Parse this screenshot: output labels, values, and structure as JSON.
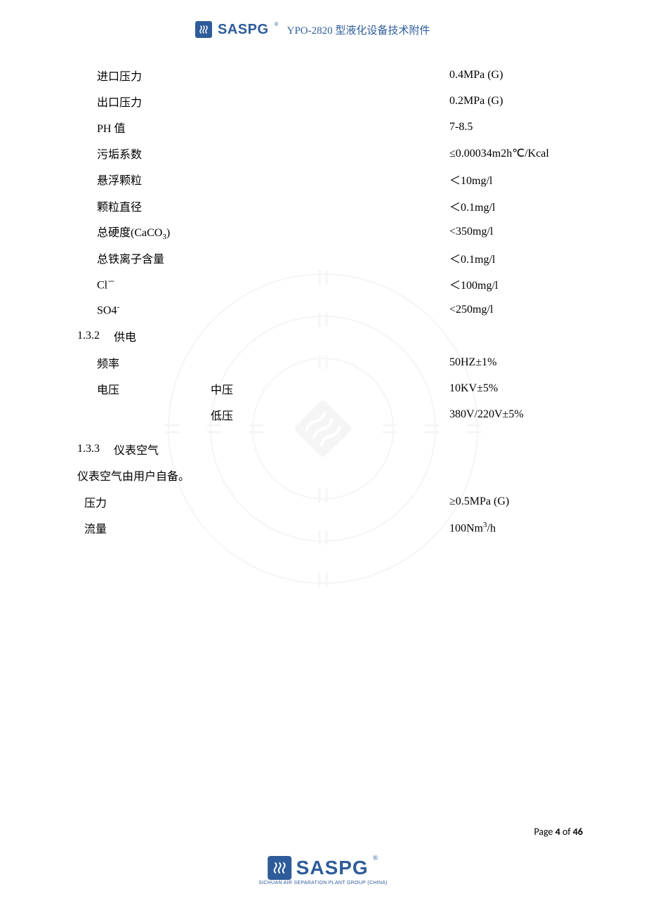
{
  "header": {
    "brand": "SASPG",
    "reg": "®",
    "title": "YPO-2820 型液化设备技术附件"
  },
  "rows": [
    {
      "label": "进口压力",
      "mid": "",
      "value": "0.4MPa (G)"
    },
    {
      "label": "出口压力",
      "mid": "",
      "value": "0.2MPa (G)"
    },
    {
      "label": "PH 值",
      "mid": "",
      "value": "7-8.5"
    },
    {
      "label": "污垢系数",
      "mid": "",
      "value": "≤0.00034m2h℃/Kcal"
    },
    {
      "label": "悬浮颗粒",
      "mid": "",
      "value": "＜10mg/l"
    },
    {
      "label": "颗粒直径",
      "mid": "",
      "value": "＜0.1mg/l"
    },
    {
      "label_html": "总硬度(CaCO<sub>3</sub>)",
      "mid": "",
      "value": "<350mg/l"
    },
    {
      "label": "总铁离子含量",
      "mid": "",
      "value": "＜0.1mg/l"
    },
    {
      "label_html": "Cl<sup>－</sup>",
      "mid": "",
      "value": "＜100mg/l"
    },
    {
      "label_html": "SO4<sup>-</sup>",
      "mid": "",
      "value": "<250mg/l"
    }
  ],
  "section132": {
    "num": "1.3.2",
    "title": "供电"
  },
  "powerRows": [
    {
      "label": "频率",
      "mid": "",
      "value": "50HZ±1%"
    },
    {
      "label": "电压",
      "mid": "中压",
      "value": "10KV±5%"
    },
    {
      "label": "",
      "mid": "低压",
      "value": "380V/220V±5%"
    }
  ],
  "section133": {
    "num": "1.3.3",
    "title": "仪表空气"
  },
  "airNote": "仪表空气由用户自备。",
  "airRows": [
    {
      "label": "压力",
      "mid": "",
      "value": "≥0.5MPa (G)"
    },
    {
      "label": "流量",
      "mid": "",
      "value_html": "100Nm<sup>3</sup>/h"
    }
  ],
  "footer": {
    "page_prefix": "Page ",
    "page_num": "4",
    "page_mid": " of ",
    "page_total": "46",
    "brand": "SASPG",
    "reg": "®",
    "sub": "SICHUAN AIR SEPARATION PLANT GROUP (CHINA)"
  },
  "colors": {
    "brand": "#2e5c9a",
    "text": "#000000",
    "bg": "#ffffff"
  },
  "fontsize": {
    "body": 16,
    "header_title": 15,
    "footer_page": 14
  }
}
